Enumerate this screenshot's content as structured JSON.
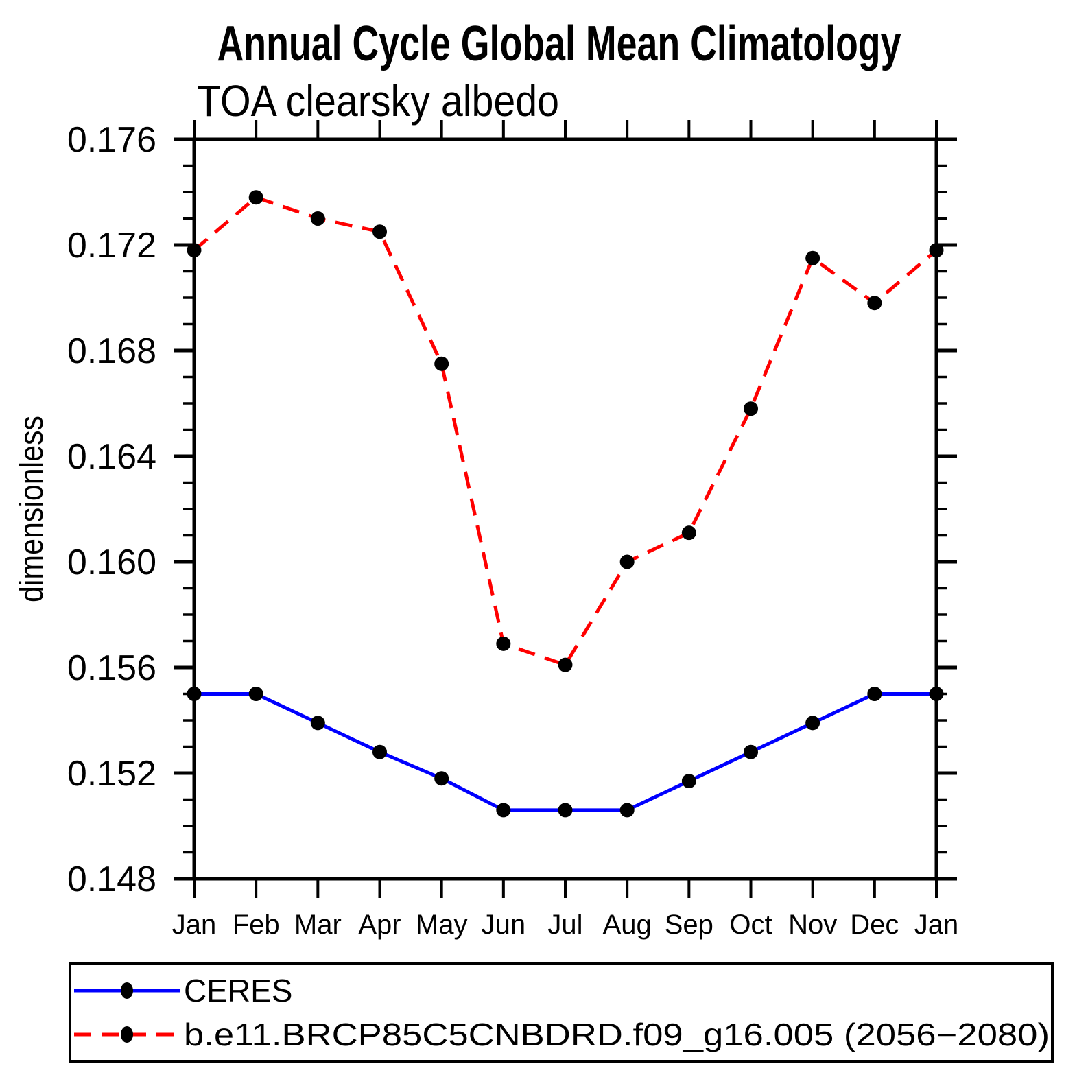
{
  "title": "Annual Cycle Global Mean Climatology",
  "subtitle": "TOA clearsky albedo",
  "y_axis_label": "dimensionless",
  "colors": {
    "ceres_line": "#0000ff",
    "model_line": "#ff0000",
    "marker": "#000000",
    "axis": "#000000",
    "background": "#ffffff"
  },
  "chart_data": {
    "type": "line",
    "title": "Annual Cycle Global Mean Climatology",
    "subtitle": "TOA clearsky albedo",
    "ylabel": "dimensionless",
    "xlabel": "",
    "x_tick_labels": [
      "Jan",
      "Feb",
      "Mar",
      "Apr",
      "May",
      "Jun",
      "Jul",
      "Aug",
      "Sep",
      "Oct",
      "Nov",
      "Dec",
      "Jan"
    ],
    "ylim": [
      0.148,
      0.176
    ],
    "y_major_step": 0.004,
    "y_minor_step": 0.001,
    "y_tick_labels": [
      "0.148",
      "0.152",
      "0.156",
      "0.160",
      "0.164",
      "0.168",
      "0.172",
      "0.176"
    ],
    "grid": false,
    "legend_position": "bottom-left",
    "series": [
      {
        "name": "CERES",
        "style": "solid",
        "color": "#0000ff",
        "marker_color": "#000000",
        "values": [
          0.155,
          0.155,
          0.1539,
          0.1528,
          0.1518,
          0.1506,
          0.1506,
          0.1506,
          0.1517,
          0.1528,
          0.1539,
          0.155,
          0.155
        ]
      },
      {
        "name": "b.e11.BRCP85C5CNBDRD.f09_g16.005 (2056−2080)",
        "style": "dashed",
        "color": "#ff0000",
        "marker_color": "#000000",
        "values": [
          0.1718,
          0.1738,
          0.173,
          0.1725,
          0.1675,
          0.1569,
          0.1561,
          0.16,
          0.1611,
          0.1658,
          0.1715,
          0.1698,
          0.1718
        ]
      }
    ]
  }
}
